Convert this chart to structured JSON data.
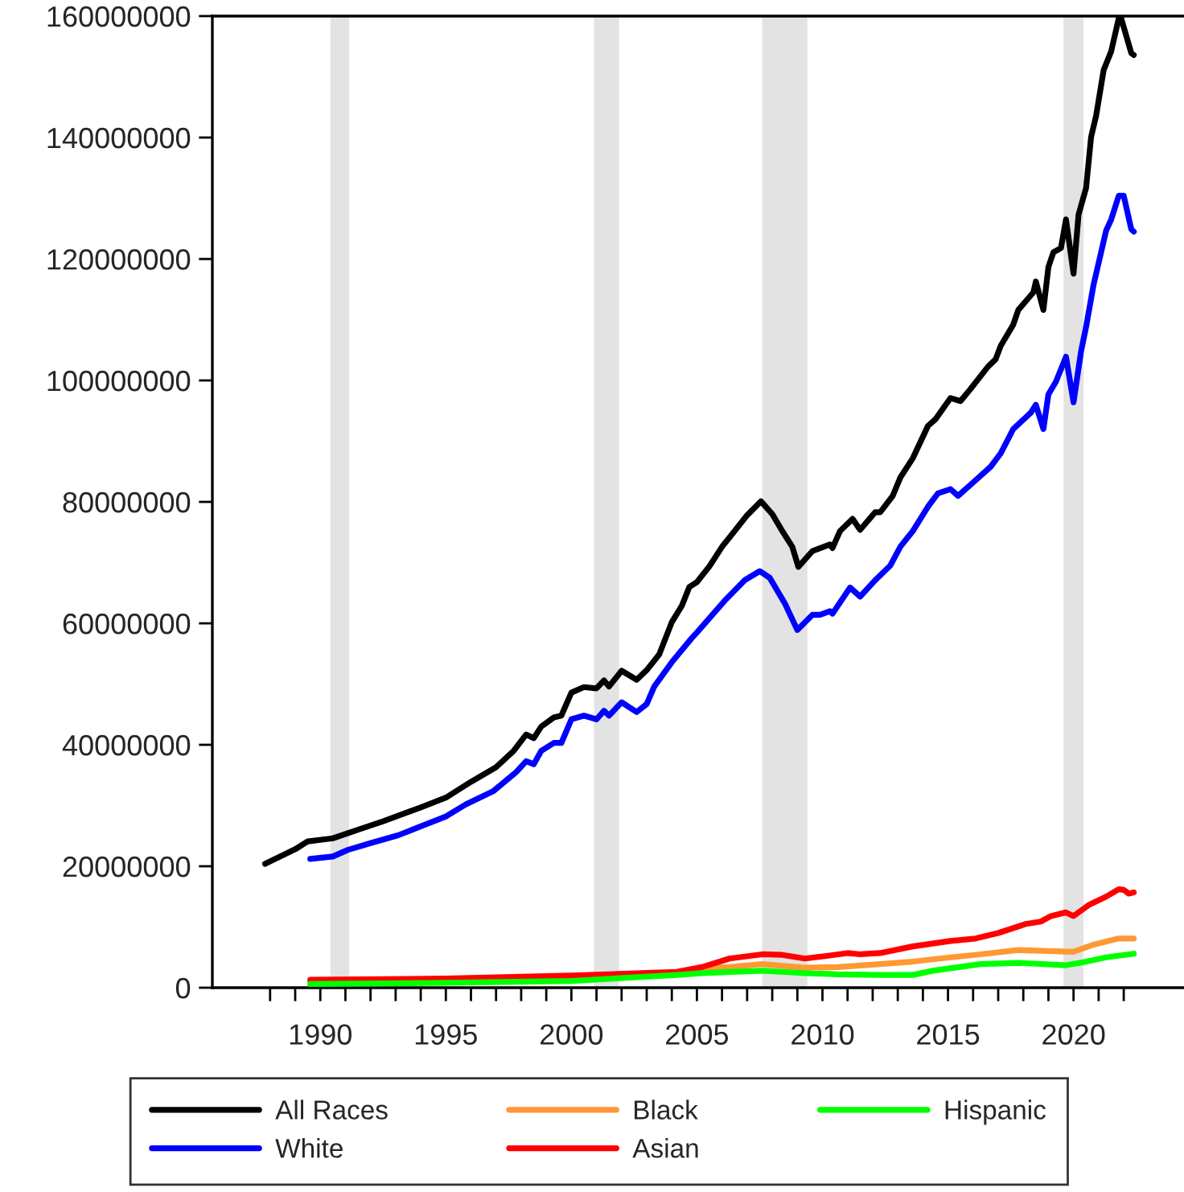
{
  "chart_data": {
    "type": "line",
    "xlim": [
      1985.7,
      2024.4
    ],
    "ylim": [
      0,
      160000000
    ],
    "xticks": [
      {
        "value": 1988,
        "label": null
      },
      {
        "value": 1989,
        "label": null
      },
      1990,
      {
        "value": 1991,
        "label": null
      },
      {
        "value": 1992,
        "label": null
      },
      {
        "value": 1993,
        "label": null
      },
      {
        "value": 1994,
        "label": null
      },
      1995,
      {
        "value": 1996,
        "label": null
      },
      {
        "value": 1997,
        "label": null
      },
      {
        "value": 1998,
        "label": null
      },
      {
        "value": 1999,
        "label": null
      },
      2000,
      {
        "value": 2001,
        "label": null
      },
      {
        "value": 2002,
        "label": null
      },
      {
        "value": 2003,
        "label": null
      },
      {
        "value": 2004,
        "label": null
      },
      2005,
      {
        "value": 2006,
        "label": null
      },
      {
        "value": 2007,
        "label": null
      },
      {
        "value": 2008,
        "label": null
      },
      {
        "value": 2009,
        "label": null
      },
      2010,
      {
        "value": 2011,
        "label": null
      },
      {
        "value": 2012,
        "label": null
      },
      {
        "value": 2013,
        "label": null
      },
      {
        "value": 2014,
        "label": null
      },
      2015,
      {
        "value": 2016,
        "label": null
      },
      {
        "value": 2017,
        "label": null
      },
      {
        "value": 2018,
        "label": null
      },
      {
        "value": 2019,
        "label": null
      },
      2020,
      {
        "value": 2021,
        "label": null
      },
      {
        "value": 2022,
        "label": null
      }
    ],
    "yticks": [
      0,
      20000000,
      40000000,
      60000000,
      80000000,
      100000000,
      120000000,
      140000000,
      160000000
    ],
    "grid": false,
    "legend": "bottom",
    "line_style": "solid",
    "marker": "none",
    "bands": [
      {
        "axis": "x",
        "from": 1990.4,
        "to": 1991.15,
        "color": "#e3e3e3"
      },
      {
        "axis": "x",
        "from": 2000.9,
        "to": 2001.9,
        "color": "#e3e3e3"
      },
      {
        "axis": "x",
        "from": 2007.6,
        "to": 2009.4,
        "color": "#e3e3e3"
      },
      {
        "axis": "x",
        "from": 2019.6,
        "to": 2020.4,
        "color": "#e3e3e3"
      }
    ],
    "series": [
      {
        "name": "All Races",
        "color": "#000000",
        "x": [
          1987.8,
          1989.0,
          1989.5,
          1990.5,
          1991.5,
          1992.5,
          1994.0,
          1995.0,
          1996.0,
          1997.0,
          1997.7,
          1998.2,
          1998.5,
          1998.8,
          1999.3,
          1999.6,
          2000.0,
          2000.5,
          2001.0,
          2001.3,
          2001.5,
          2002.0,
          2002.6,
          2003.0,
          2003.5,
          2004.0,
          2004.4,
          2004.7,
          2005.0,
          2005.5,
          2006.0,
          2006.5,
          2007.0,
          2007.55,
          2008.0,
          2008.4,
          2008.8,
          2009.04,
          2009.6,
          2010.3,
          2010.4,
          2010.7,
          2011.2,
          2011.5,
          2012.1,
          2012.3,
          2012.8,
          2013.1,
          2013.6,
          2014.2,
          2014.5,
          2015.1,
          2015.5,
          2015.9,
          2016.6,
          2016.9,
          2017.1,
          2017.6,
          2017.8,
          2018.4,
          2018.5,
          2018.8,
          2019.0,
          2019.2,
          2019.5,
          2019.7,
          2020.0,
          2020.2,
          2020.5,
          2020.7,
          2020.9,
          2021.2,
          2021.5,
          2021.8,
          2021.9,
          2022.3,
          2022.4
        ],
        "values": [
          20400000,
          22800000,
          24100000,
          24600000,
          26000000,
          27400000,
          29700000,
          31300000,
          33900000,
          36300000,
          39000000,
          41700000,
          41100000,
          43000000,
          44500000,
          44800000,
          48600000,
          49500000,
          49300000,
          50600000,
          49600000,
          52200000,
          50700000,
          52300000,
          54900000,
          60200000,
          62900000,
          66000000,
          66800000,
          69400000,
          72600000,
          75200000,
          77800000,
          80100000,
          78000000,
          75200000,
          72600000,
          69300000,
          71900000,
          73000000,
          72400000,
          75200000,
          77200000,
          75400000,
          78300000,
          78300000,
          81000000,
          84000000,
          87200000,
          92500000,
          93600000,
          97100000,
          96600000,
          98600000,
          102300000,
          103500000,
          105700000,
          109200000,
          111600000,
          114500000,
          116300000,
          111600000,
          118700000,
          121100000,
          121800000,
          126500000,
          117600000,
          127300000,
          131700000,
          140100000,
          143600000,
          151100000,
          154200000,
          159600000,
          159600000,
          153900000,
          153600000
        ]
      },
      {
        "name": "White",
        "color": "#0000ff",
        "x": [
          1989.6,
          1990.5,
          1991.1,
          1992.0,
          1993.1,
          1993.9,
          1995.0,
          1995.8,
          1996.9,
          1997.8,
          1998.2,
          1998.5,
          1998.8,
          1999.3,
          1999.6,
          2000.0,
          2000.5,
          2001.0,
          2001.3,
          2001.5,
          2002.0,
          2002.6,
          2003.0,
          2003.3,
          2004.0,
          2004.8,
          2005.0,
          2006.1,
          2006.9,
          2007.5,
          2007.9,
          2008.5,
          2009.0,
          2009.6,
          2009.9,
          2010.3,
          2010.4,
          2011.1,
          2011.5,
          2012.1,
          2012.7,
          2013.1,
          2013.6,
          2014.2,
          2014.6,
          2015.1,
          2015.4,
          2016.0,
          2016.7,
          2017.1,
          2017.6,
          2018.3,
          2018.5,
          2018.8,
          2019.0,
          2019.3,
          2019.7,
          2020.0,
          2020.3,
          2020.5,
          2020.8,
          2021.3,
          2021.5,
          2021.8,
          2022.0,
          2022.3,
          2022.4
        ],
        "values": [
          21200000,
          21600000,
          22700000,
          23800000,
          25100000,
          26400000,
          28200000,
          30200000,
          32400000,
          35500000,
          37300000,
          36800000,
          39000000,
          40300000,
          40300000,
          44200000,
          44800000,
          44200000,
          45600000,
          44800000,
          47000000,
          45400000,
          46700000,
          49600000,
          53600000,
          57600000,
          58500000,
          63700000,
          67100000,
          68600000,
          67500000,
          63300000,
          58900000,
          61400000,
          61400000,
          62000000,
          61600000,
          65900000,
          64400000,
          67100000,
          69500000,
          72600000,
          75200000,
          79200000,
          81400000,
          82100000,
          81000000,
          83200000,
          85800000,
          88000000,
          92000000,
          94700000,
          96000000,
          92000000,
          97700000,
          99800000,
          103900000,
          96400000,
          104800000,
          108800000,
          115800000,
          124700000,
          126500000,
          130400000,
          130400000,
          124900000,
          124500000
        ]
      },
      {
        "name": "Black",
        "color": "#ff9933",
        "x": [
          1989.6,
          1995.0,
          2000.0,
          2004.2,
          2005.2,
          2006.3,
          2007.6,
          2009.3,
          2010.6,
          2012.3,
          2013.6,
          2015.1,
          2016.3,
          2017.8,
          2020.0,
          2020.8,
          2021.8,
          2022.4
        ],
        "values": [
          1000000,
          1200000,
          1800000,
          2400000,
          3300000,
          3400000,
          3900000,
          3300000,
          3400000,
          3900000,
          4300000,
          5000000,
          5500000,
          6200000,
          5900000,
          7100000,
          8100000,
          8100000
        ]
      },
      {
        "name": "Asian",
        "color": "#ff0000",
        "x": [
          1989.6,
          1995.0,
          2000.0,
          2004.2,
          2005.2,
          2006.3,
          2007.6,
          2008.4,
          2009.3,
          2010.1,
          2011.0,
          2011.5,
          2012.3,
          2013.6,
          2015.1,
          2016.1,
          2017.0,
          2018.1,
          2018.7,
          2019.1,
          2019.7,
          2020.0,
          2020.6,
          2021.3,
          2021.8,
          2022.0,
          2022.2,
          2022.4
        ],
        "values": [
          1300000,
          1500000,
          2000000,
          2600000,
          3400000,
          4800000,
          5500000,
          5400000,
          4800000,
          5200000,
          5700000,
          5500000,
          5700000,
          6800000,
          7700000,
          8100000,
          9000000,
          10500000,
          10900000,
          11800000,
          12400000,
          11800000,
          13600000,
          15000000,
          16200000,
          16100000,
          15500000,
          15700000
        ]
      },
      {
        "name": "Hispanic",
        "color": "#00ff00",
        "x": [
          1989.6,
          1995.0,
          2000.0,
          2004.2,
          2005.2,
          2006.3,
          2007.6,
          2009.3,
          2010.6,
          2012.3,
          2013.6,
          2014.4,
          2016.3,
          2017.8,
          2019.7,
          2020.4,
          2021.3,
          2022.4
        ],
        "values": [
          600000,
          800000,
          1100000,
          2100000,
          2400000,
          2600000,
          2800000,
          2400000,
          2200000,
          2100000,
          2100000,
          2800000,
          3900000,
          4100000,
          3700000,
          4200000,
          5000000,
          5600000
        ]
      }
    ]
  }
}
